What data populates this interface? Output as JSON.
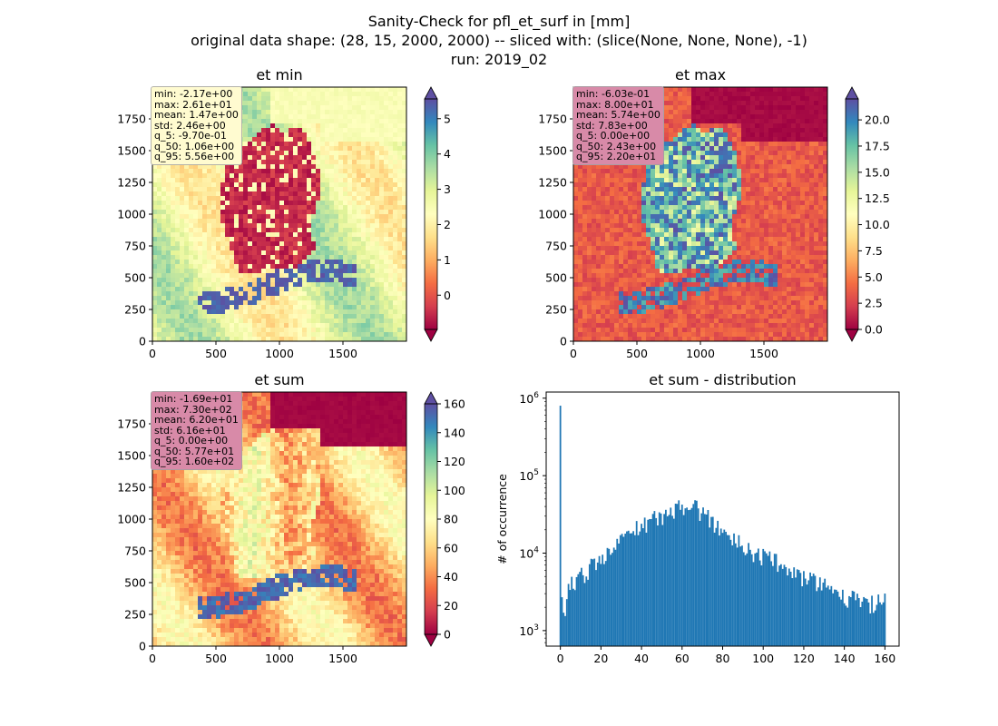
{
  "suptitle": {
    "line1": "Sanity-Check for pfl_et_surf in [mm]",
    "line2": "original data shape: (28, 15, 2000, 2000) -- sliced with: (slice(None, None, None), -1)",
    "line3": "run: 2019_02"
  },
  "colors": {
    "colormap": "Spectral",
    "spectral_stops": [
      "#9e0142",
      "#d53e4f",
      "#f46d43",
      "#fdae61",
      "#fee08b",
      "#ffffbf",
      "#e6f598",
      "#abdda4",
      "#66c2a5",
      "#3288bd",
      "#5e4fa2"
    ],
    "hist_bar": "#1f77b4",
    "stats_box_light": "#fffbd0",
    "stats_box_pink": "#d88aa8"
  },
  "panels": [
    {
      "title": "et min",
      "stats": [
        "min: -2.17e+00",
        "max: 2.61e+01",
        "mean: 1.47e+00",
        "std: 2.46e+00",
        "q_5: -9.70e-01",
        "q_50: 1.06e+00",
        "q_95: 5.56e+00"
      ],
      "stats_box_color": "light"
    },
    {
      "title": "et max",
      "stats": [
        "min: -6.03e-01",
        "max: 8.00e+01",
        "mean: 5.74e+00",
        "std: 7.83e+00",
        "q_5: 0.00e+00",
        "q_50: 2.43e+00",
        "q_95: 2.20e+01"
      ],
      "stats_box_color": "pink"
    },
    {
      "title": "et sum",
      "stats": [
        "min: -1.69e+01",
        "max: 7.30e+02",
        "mean: 6.20e+01",
        "std: 6.16e+01",
        "q_5: 0.00e+00",
        "q_50: 5.77e+01",
        "q_95: 1.60e+02"
      ],
      "stats_box_color": "pink"
    },
    {
      "title": "et sum - distribution"
    }
  ],
  "chart_data": [
    {
      "type": "heatmap",
      "title": "et min",
      "x_ticks": [
        "0",
        "500",
        "1000",
        "1500"
      ],
      "y_ticks": [
        "0",
        "250",
        "500",
        "750",
        "1000",
        "1250",
        "1500",
        "1750"
      ],
      "xlim": [
        0,
        2000
      ],
      "ylim": [
        0,
        2000
      ],
      "colorbar": {
        "vmin": -0.97,
        "vmax": 5.56,
        "ticks": [
          "0",
          "1",
          "2",
          "3",
          "4",
          "5"
        ],
        "extend": "both"
      }
    },
    {
      "type": "heatmap",
      "title": "et max",
      "x_ticks": [
        "0",
        "500",
        "1000",
        "1500"
      ],
      "y_ticks": [
        "0",
        "250",
        "500",
        "750",
        "1000",
        "1250",
        "1500",
        "1750"
      ],
      "xlim": [
        0,
        2000
      ],
      "ylim": [
        0,
        2000
      ],
      "colorbar": {
        "vmin": 0.0,
        "vmax": 22.0,
        "ticks": [
          "0.0",
          "2.5",
          "5.0",
          "7.5",
          "10.0",
          "12.5",
          "15.0",
          "17.5",
          "20.0"
        ],
        "extend": "both"
      }
    },
    {
      "type": "heatmap",
      "title": "et sum",
      "x_ticks": [
        "0",
        "500",
        "1000",
        "1500"
      ],
      "y_ticks": [
        "0",
        "250",
        "500",
        "750",
        "1000",
        "1250",
        "1500",
        "1750"
      ],
      "xlim": [
        0,
        2000
      ],
      "ylim": [
        0,
        2000
      ],
      "colorbar": {
        "vmin": 0.0,
        "vmax": 160.0,
        "ticks": [
          "0",
          "20",
          "40",
          "60",
          "80",
          "100",
          "120",
          "140",
          "160"
        ],
        "extend": "both"
      }
    },
    {
      "type": "bar",
      "title": "et sum - distribution",
      "ylabel": "# of occurrence",
      "xlabel": "",
      "y_scale": "log",
      "xlim": [
        -7,
        167
      ],
      "ylim": [
        630,
        1200000
      ],
      "x_ticks": [
        "0",
        "20",
        "40",
        "60",
        "80",
        "100",
        "120",
        "140",
        "160"
      ],
      "y_ticks": [
        "10^3",
        "10^4",
        "10^5",
        "10^6"
      ],
      "bin_width": 0.8,
      "bin_centers_range": [
        0,
        160
      ],
      "profile_x": [
        0,
        0.4,
        1.2,
        4,
        8,
        12,
        16,
        20,
        25,
        30,
        35,
        40,
        45,
        50,
        55,
        60,
        63,
        66,
        70,
        75,
        80,
        85,
        90,
        95,
        100,
        105,
        110,
        115,
        120,
        125,
        130,
        135,
        140,
        145,
        150,
        155,
        160
      ],
      "profile_y": [
        800000,
        3800,
        1300,
        3500,
        4500,
        5500,
        7000,
        8000,
        10000,
        14000,
        19000,
        24000,
        27000,
        30000,
        34000,
        40000,
        44000,
        40000,
        33000,
        26000,
        20000,
        16000,
        12500,
        10000,
        9000,
        8000,
        7000,
        6000,
        5000,
        4400,
        3900,
        3300,
        2800,
        2500,
        2300,
        2200,
        2600
      ]
    }
  ]
}
